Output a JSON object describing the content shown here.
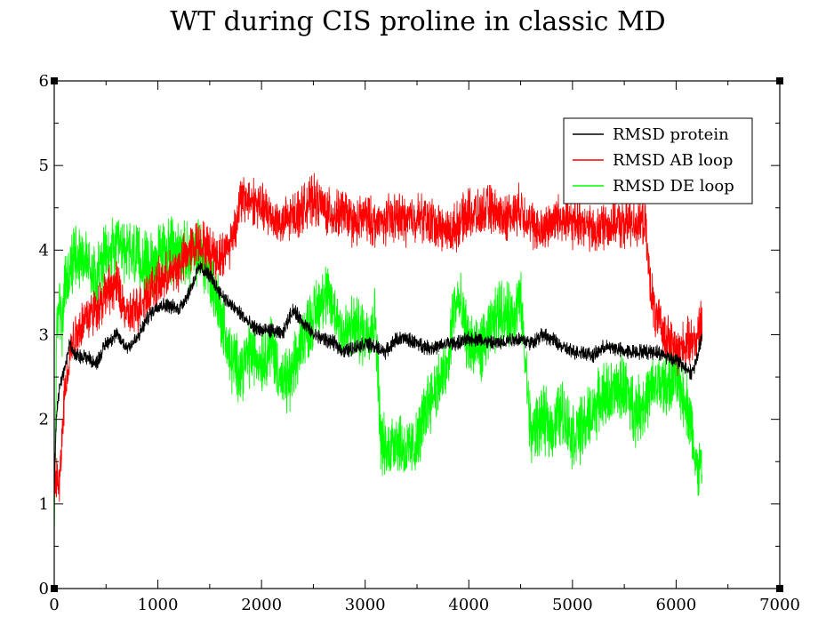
{
  "chart_data": {
    "type": "line",
    "title": "WT during CIS proline in classic MD",
    "xlabel": "",
    "ylabel": "",
    "xlim": [
      0,
      7000
    ],
    "ylim": [
      0,
      6
    ],
    "x_ticks": [
      0,
      1000,
      2000,
      3000,
      4000,
      5000,
      6000,
      7000
    ],
    "y_ticks": [
      0,
      1,
      2,
      3,
      4,
      5,
      6
    ],
    "x_tick_labels": [
      "0",
      "1000",
      "2000",
      "3000",
      "4000",
      "5000",
      "6000",
      "7000"
    ],
    "y_tick_labels": [
      "0",
      "1",
      "2",
      "3",
      "4",
      "5",
      "6"
    ],
    "grid": false,
    "legend_position": "top-right",
    "series": [
      {
        "name": "RMSD protein",
        "color": "#000000",
        "noise": 0.07,
        "x": [
          0,
          20,
          50,
          100,
          150,
          200,
          300,
          400,
          500,
          600,
          700,
          800,
          900,
          1000,
          1100,
          1200,
          1300,
          1400,
          1500,
          1600,
          1700,
          1800,
          1900,
          2000,
          2100,
          2200,
          2300,
          2400,
          2500,
          2600,
          2700,
          2800,
          2900,
          3000,
          3100,
          3200,
          3300,
          3400,
          3500,
          3600,
          3700,
          3800,
          3900,
          4000,
          4100,
          4200,
          4300,
          4400,
          4500,
          4600,
          4700,
          4800,
          4900,
          5000,
          5100,
          5200,
          5300,
          5400,
          5500,
          5600,
          5700,
          5800,
          5900,
          6000,
          6100,
          6150,
          6200,
          6250
        ],
        "y": [
          1.2,
          2.0,
          2.4,
          2.6,
          2.9,
          2.75,
          2.75,
          2.65,
          2.9,
          3.0,
          2.85,
          2.95,
          3.2,
          3.35,
          3.35,
          3.3,
          3.5,
          3.8,
          3.7,
          3.5,
          3.35,
          3.25,
          3.1,
          3.05,
          3.05,
          3.0,
          3.3,
          3.15,
          3.0,
          2.95,
          2.9,
          2.8,
          2.85,
          2.9,
          2.85,
          2.8,
          2.95,
          2.95,
          2.9,
          2.85,
          2.85,
          2.9,
          2.9,
          2.95,
          2.95,
          2.9,
          2.9,
          2.95,
          2.95,
          2.9,
          3.0,
          2.95,
          2.85,
          2.8,
          2.8,
          2.75,
          2.85,
          2.85,
          2.8,
          2.8,
          2.8,
          2.8,
          2.75,
          2.7,
          2.6,
          2.55,
          2.7,
          3.0
        ]
      },
      {
        "name": "RMSD AB loop",
        "color": "#ff0000",
        "noise": 0.22,
        "x": [
          0,
          20,
          50,
          100,
          150,
          200,
          300,
          400,
          500,
          600,
          700,
          800,
          900,
          1000,
          1100,
          1200,
          1300,
          1400,
          1500,
          1600,
          1700,
          1750,
          1800,
          1900,
          2000,
          2100,
          2200,
          2300,
          2400,
          2500,
          2600,
          2700,
          2800,
          2900,
          3000,
          3100,
          3200,
          3300,
          3400,
          3500,
          3600,
          3700,
          3800,
          3900,
          4000,
          4100,
          4200,
          4300,
          4400,
          4500,
          4600,
          4700,
          4800,
          4900,
          5000,
          5100,
          5200,
          5300,
          5400,
          5500,
          5600,
          5700,
          5750,
          5800,
          5900,
          6000,
          6100,
          6200,
          6250
        ],
        "y": [
          1.3,
          1.3,
          1.2,
          2.3,
          2.8,
          3.0,
          3.2,
          3.3,
          3.5,
          3.6,
          3.2,
          3.3,
          3.5,
          3.6,
          3.7,
          3.8,
          4.0,
          4.1,
          4.0,
          3.9,
          4.1,
          4.3,
          4.6,
          4.6,
          4.5,
          4.4,
          4.3,
          4.4,
          4.5,
          4.6,
          4.5,
          4.4,
          4.45,
          4.3,
          4.4,
          4.3,
          4.35,
          4.4,
          4.35,
          4.4,
          4.35,
          4.3,
          4.2,
          4.3,
          4.45,
          4.4,
          4.5,
          4.4,
          4.4,
          4.5,
          4.3,
          4.2,
          4.35,
          4.4,
          4.3,
          4.35,
          4.2,
          4.3,
          4.3,
          4.3,
          4.35,
          4.3,
          3.6,
          3.2,
          3.0,
          2.8,
          2.9,
          2.95,
          3.2
        ]
      },
      {
        "name": "RMSD DE loop",
        "color": "#00ff00",
        "noise": 0.3,
        "x": [
          0,
          20,
          50,
          80,
          100,
          150,
          200,
          300,
          400,
          500,
          600,
          700,
          800,
          900,
          1000,
          1100,
          1200,
          1300,
          1400,
          1500,
          1600,
          1700,
          1800,
          1900,
          2000,
          2100,
          2200,
          2300,
          2400,
          2500,
          2600,
          2700,
          2800,
          2900,
          3000,
          3100,
          3150,
          3200,
          3300,
          3400,
          3500,
          3600,
          3700,
          3800,
          3850,
          3900,
          4000,
          4100,
          4200,
          4300,
          4400,
          4500,
          4600,
          4700,
          4800,
          4900,
          5000,
          5100,
          5200,
          5300,
          5400,
          5500,
          5600,
          5700,
          5800,
          5900,
          6000,
          6100,
          6150,
          6200,
          6250
        ],
        "y": [
          0.5,
          2.8,
          3.5,
          3.0,
          3.6,
          3.7,
          4.0,
          3.9,
          3.7,
          3.9,
          4.0,
          4.0,
          3.9,
          3.8,
          3.9,
          4.0,
          4.0,
          3.9,
          4.0,
          3.7,
          3.3,
          2.7,
          2.6,
          2.8,
          2.7,
          2.9,
          2.4,
          2.5,
          3.0,
          3.2,
          3.5,
          3.3,
          3.0,
          3.1,
          3.0,
          3.2,
          1.8,
          1.6,
          1.8,
          1.6,
          1.7,
          2.2,
          2.4,
          2.6,
          3.3,
          3.4,
          2.9,
          2.8,
          3.0,
          3.3,
          3.2,
          3.4,
          1.8,
          2.0,
          1.9,
          2.1,
          1.8,
          1.9,
          2.1,
          2.3,
          2.3,
          2.4,
          2.1,
          2.2,
          2.4,
          2.4,
          2.5,
          2.2,
          1.9,
          1.4,
          1.4
        ]
      }
    ]
  }
}
